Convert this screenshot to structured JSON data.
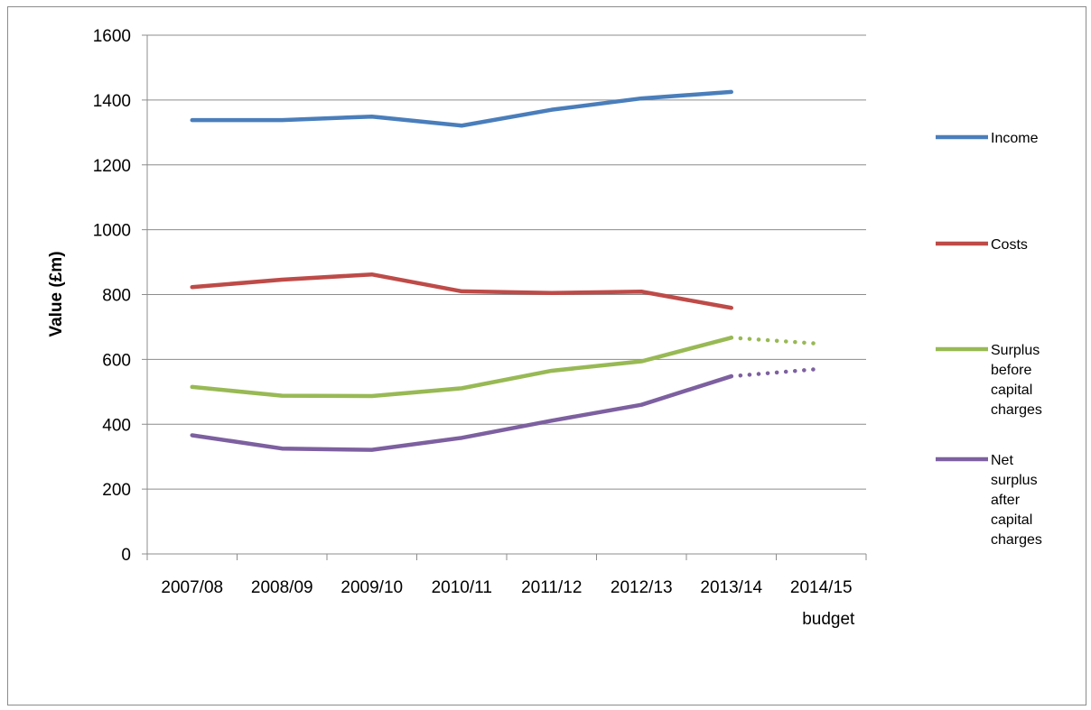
{
  "chart_data": {
    "type": "line",
    "title": "",
    "xlabel": "",
    "ylabel": "Value (£m)",
    "ylim": [
      0,
      1600
    ],
    "yticks": [
      0,
      200,
      400,
      600,
      800,
      1000,
      1200,
      1400,
      1600
    ],
    "categories": [
      "2007/08",
      "2008/09",
      "2009/10",
      "2010/11",
      "2011/12",
      "2012/13",
      "2013/14",
      "2014/15 budget"
    ],
    "grid": true,
    "legend_position": "right",
    "series": [
      {
        "name": "Income",
        "color": "#4a7ebb",
        "values": [
          1338,
          1338,
          1349,
          1321,
          1370,
          1405,
          1425,
          null
        ],
        "budget_projection": null
      },
      {
        "name": "Costs",
        "color": "#be4b48",
        "values": [
          823,
          846,
          862,
          810,
          805,
          809,
          759,
          null
        ],
        "budget_projection": null
      },
      {
        "name": "Surplus before capital charges",
        "color": "#98b954",
        "values": [
          515,
          488,
          487,
          511,
          565,
          594,
          667,
          null
        ],
        "budget_projection": 648
      },
      {
        "name": "Net surplus after capital charges",
        "color": "#7d60a0",
        "values": [
          366,
          325,
          321,
          358,
          411,
          460,
          548,
          null
        ],
        "budget_projection": 571
      }
    ]
  },
  "legend": {
    "income_lines": [
      "Income"
    ],
    "costs_lines": [
      "Costs"
    ],
    "surplus_lines": [
      "Surplus",
      "before",
      "capital",
      "charges"
    ],
    "net_lines": [
      "Net",
      "surplus",
      "after",
      "capital",
      "charges"
    ]
  }
}
